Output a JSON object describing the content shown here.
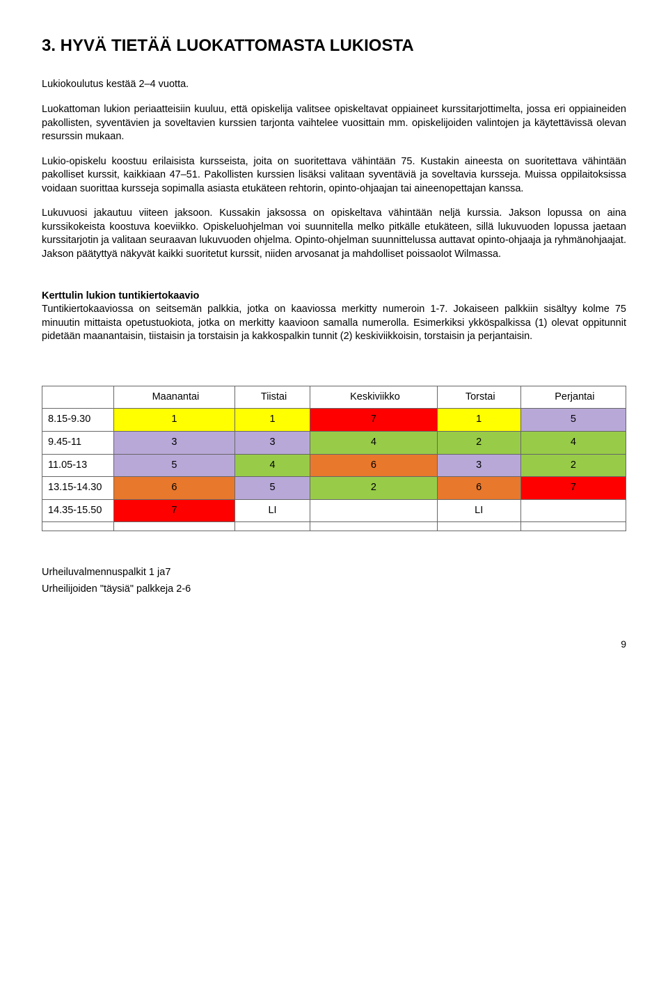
{
  "title": "3. HYVÄ TIETÄÄ LUOKATTOMASTA LUKIOSTA",
  "para1": "Lukiokoulutus kestää 2–4 vuotta.",
  "para2": "Luokattoman lukion periaatteisiin kuuluu, että opiskelija valitsee opiskeltavat oppiaineet kurssitarjottimelta, jossa eri oppiaineiden pakollisten, syventävien ja soveltavien kurssien tarjonta vaihtelee vuosittain mm. opiskelijoiden valintojen ja käytettävissä olevan resurssin mukaan.",
  "para3": "Lukio-opiskelu koostuu erilaisista kursseista, joita on suoritettava vähintään 75. Kustakin aineesta on suoritettava vähintään pakolliset kurssit, kaikkiaan 47–51. Pakollisten kurssien lisäksi valitaan syventäviä ja soveltavia kursseja. Muissa oppilaitoksissa voidaan suorittaa kursseja sopimalla asiasta etukäteen rehtorin, opinto-ohjaajan tai aineenopettajan kanssa.",
  "para4": "Lukuvuosi jakautuu viiteen jaksoon. Kussakin jaksossa on opiskeltava vähintään neljä kurssia. Jakson lopussa on aina kurssikokeista koostuva koeviikko. Opiskeluohjelman voi suunnitella melko pitkälle etukäteen, sillä lukuvuoden lopussa jaetaan kurssitarjotin ja valitaan seuraavan lukuvuoden ohjelma. Opinto-ohjelman suunnittelussa auttavat opinto-ohjaaja ja ryhmänohjaajat. Jakson päätyttyä näkyvät kaikki suoritetut kurssit, niiden arvosanat ja mahdolliset poissaolot Wilmassa.",
  "subhead": "Kerttulin lukion tuntikiertokaavio",
  "subpara": "Tuntikiertokaaviossa on seitsemän palkkia, jotka on kaaviossa merkitty numeroin 1-7. Jokaiseen palkkiin sisältyy kolme 75 minuutin mittaista opetustuokiota, jotka on merkitty kaavioon samalla numerolla. Esimerkiksi ykköspalkissa (1) olevat oppitunnit pidetään maanantaisin, tiistaisin ja torstaisin ja kakkospalkin tunnit (2) keskiviikkoisin, torstaisin ja perjantaisin.",
  "schedule": {
    "type": "table",
    "headers": [
      "",
      "Maanantai",
      "Tiistai",
      "Keskiviikko",
      "Torstai",
      "Perjantai"
    ],
    "colors": {
      "yellow": "#ffff00",
      "red": "#ff0000",
      "lavender": "#b8a8d8",
      "green": "#98cc48",
      "orange": "#e8782c",
      "white": "#ffffff"
    },
    "rows": [
      {
        "time": "8.15-9.30",
        "cells": [
          {
            "v": "1",
            "c": "yellow"
          },
          {
            "v": "1",
            "c": "yellow"
          },
          {
            "v": "7",
            "c": "red"
          },
          {
            "v": "1",
            "c": "yellow"
          },
          {
            "v": "5",
            "c": "lavender"
          }
        ]
      },
      {
        "time": "9.45-11",
        "cells": [
          {
            "v": "3",
            "c": "lavender"
          },
          {
            "v": "3",
            "c": "lavender"
          },
          {
            "v": "4",
            "c": "green"
          },
          {
            "v": "2",
            "c": "green"
          },
          {
            "v": "4",
            "c": "green"
          }
        ]
      },
      {
        "time": "11.05-13",
        "cells": [
          {
            "v": "5",
            "c": "lavender"
          },
          {
            "v": "4",
            "c": "green"
          },
          {
            "v": "6",
            "c": "orange"
          },
          {
            "v": "3",
            "c": "lavender"
          },
          {
            "v": "2",
            "c": "green"
          }
        ]
      },
      {
        "time": "13.15-14.30",
        "cells": [
          {
            "v": "6",
            "c": "orange"
          },
          {
            "v": "5",
            "c": "lavender"
          },
          {
            "v": "2",
            "c": "green"
          },
          {
            "v": "6",
            "c": "orange"
          },
          {
            "v": "7",
            "c": "red"
          }
        ]
      },
      {
        "time": "14.35-15.50",
        "cells": [
          {
            "v": "7",
            "c": "red"
          },
          {
            "v": "LI",
            "c": "white"
          },
          {
            "v": "",
            "c": "white"
          },
          {
            "v": "LI",
            "c": "white"
          },
          {
            "v": "",
            "c": "white"
          }
        ]
      },
      {
        "time": "",
        "cells": [
          {
            "v": "",
            "c": "white"
          },
          {
            "v": "",
            "c": "white"
          },
          {
            "v": "",
            "c": "white"
          },
          {
            "v": "",
            "c": "white"
          },
          {
            "v": "",
            "c": "white"
          }
        ]
      }
    ]
  },
  "footer1": "Urheiluvalmennuspalkit 1 ja7",
  "footer2": "Urheilijoiden \"täysiä\" palkkeja 2-6",
  "pagenum": "9"
}
